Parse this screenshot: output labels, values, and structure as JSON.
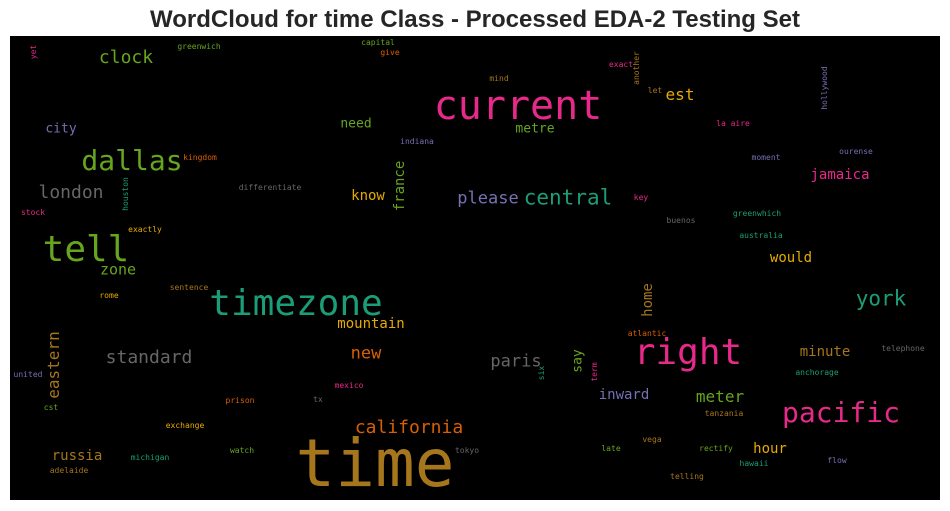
{
  "chart_data": {
    "type": "wordcloud",
    "title": "WordCloud for time Class - Processed EDA-2 Testing Set",
    "background": "#000000",
    "palette": [
      "#d95f02",
      "#1b9e77",
      "#7570b3",
      "#e7298a",
      "#66a61e",
      "#e6ab02",
      "#a6761d",
      "#666666"
    ],
    "words": [
      {
        "text": "time",
        "color": "#a6761d"
      },
      {
        "text": "current",
        "color": "#e7298a"
      },
      {
        "text": "timezone",
        "color": "#1b9e77"
      },
      {
        "text": "right",
        "color": "#e7298a"
      },
      {
        "text": "tell",
        "color": "#66a61e"
      },
      {
        "text": "pacific",
        "color": "#e7298a"
      },
      {
        "text": "dallas",
        "color": "#66a61e"
      },
      {
        "text": "york",
        "color": "#1b9e77"
      },
      {
        "text": "central",
        "color": "#1b9e77"
      },
      {
        "text": "california",
        "color": "#d95f02"
      },
      {
        "text": "london",
        "color": "#666666"
      },
      {
        "text": "standard",
        "color": "#666666"
      },
      {
        "text": "clock",
        "color": "#66a61e"
      },
      {
        "text": "please",
        "color": "#7570b3"
      },
      {
        "text": "eastern",
        "color": "#a6761d"
      },
      {
        "text": "new",
        "color": "#d95f02"
      },
      {
        "text": "paris",
        "color": "#666666"
      },
      {
        "text": "est",
        "color": "#e6ab02"
      },
      {
        "text": "zone",
        "color": "#66a61e"
      },
      {
        "text": "meter",
        "color": "#66a61e"
      },
      {
        "text": "minute",
        "color": "#a6761d"
      },
      {
        "text": "home",
        "color": "#a6761d"
      },
      {
        "text": "france",
        "color": "#66a61e"
      },
      {
        "text": "russia",
        "color": "#a6761d"
      },
      {
        "text": "hour",
        "color": "#e6ab02"
      },
      {
        "text": "jamaica",
        "color": "#e7298a"
      },
      {
        "text": "would",
        "color": "#e6ab02"
      },
      {
        "text": "mountain",
        "color": "#e6ab02"
      },
      {
        "text": "inward",
        "color": "#7570b3"
      },
      {
        "text": "city",
        "color": "#7570b3"
      },
      {
        "text": "need",
        "color": "#66a61e"
      },
      {
        "text": "metre",
        "color": "#66a61e"
      },
      {
        "text": "know",
        "color": "#e6ab02"
      },
      {
        "text": "say",
        "color": "#66a61e"
      },
      {
        "text": "greenwich",
        "color": "#66a61e"
      },
      {
        "text": "capital",
        "color": "#66a61e"
      },
      {
        "text": "give",
        "color": "#d95f02"
      },
      {
        "text": "yet",
        "color": "#e7298a"
      },
      {
        "text": "mind",
        "color": "#a6761d"
      },
      {
        "text": "exact",
        "color": "#e7298a"
      },
      {
        "text": "another",
        "color": "#a6761d"
      },
      {
        "text": "let",
        "color": "#a6761d"
      },
      {
        "text": "hollywood",
        "color": "#7570b3"
      },
      {
        "text": "la aire",
        "color": "#e7298a"
      },
      {
        "text": "indiana",
        "color": "#7570b3"
      },
      {
        "text": "kingdom",
        "color": "#d95f02"
      },
      {
        "text": "moment",
        "color": "#7570b3"
      },
      {
        "text": "ourense",
        "color": "#7570b3"
      },
      {
        "text": "differentiate",
        "color": "#666666"
      },
      {
        "text": "houston",
        "color": "#1b9e77"
      },
      {
        "text": "key",
        "color": "#e7298a"
      },
      {
        "text": "stock",
        "color": "#e7298a"
      },
      {
        "text": "buenos",
        "color": "#666666"
      },
      {
        "text": "greenwhich",
        "color": "#1b9e77"
      },
      {
        "text": "exactly",
        "color": "#e6ab02"
      },
      {
        "text": "australia",
        "color": "#1b9e77"
      },
      {
        "text": "sentence",
        "color": "#a6761d"
      },
      {
        "text": "rome",
        "color": "#e6ab02"
      },
      {
        "text": "atlantic",
        "color": "#d95f02"
      },
      {
        "text": "telephone",
        "color": "#666666"
      },
      {
        "text": "united",
        "color": "#7570b3"
      },
      {
        "text": "mexico",
        "color": "#e7298a"
      },
      {
        "text": "six",
        "color": "#1b9e77"
      },
      {
        "text": "term",
        "color": "#e7298a"
      },
      {
        "text": "anchorage",
        "color": "#1b9e77"
      },
      {
        "text": "prison",
        "color": "#d95f02"
      },
      {
        "text": "tx",
        "color": "#666666"
      },
      {
        "text": "cst",
        "color": "#66a61e"
      },
      {
        "text": "tanzania",
        "color": "#a6761d"
      },
      {
        "text": "exchange",
        "color": "#e6ab02"
      },
      {
        "text": "vega",
        "color": "#a6761d"
      },
      {
        "text": "watch",
        "color": "#66a61e"
      },
      {
        "text": "late",
        "color": "#66a61e"
      },
      {
        "text": "rectify",
        "color": "#66a61e"
      },
      {
        "text": "hawaii",
        "color": "#1b9e77"
      },
      {
        "text": "flow",
        "color": "#7570b3"
      },
      {
        "text": "tokyo",
        "color": "#666666"
      },
      {
        "text": "michigan",
        "color": "#1b9e77"
      },
      {
        "text": "adelaide",
        "color": "#a6761d"
      },
      {
        "text": "telling",
        "color": "#a6761d"
      }
    ]
  }
}
